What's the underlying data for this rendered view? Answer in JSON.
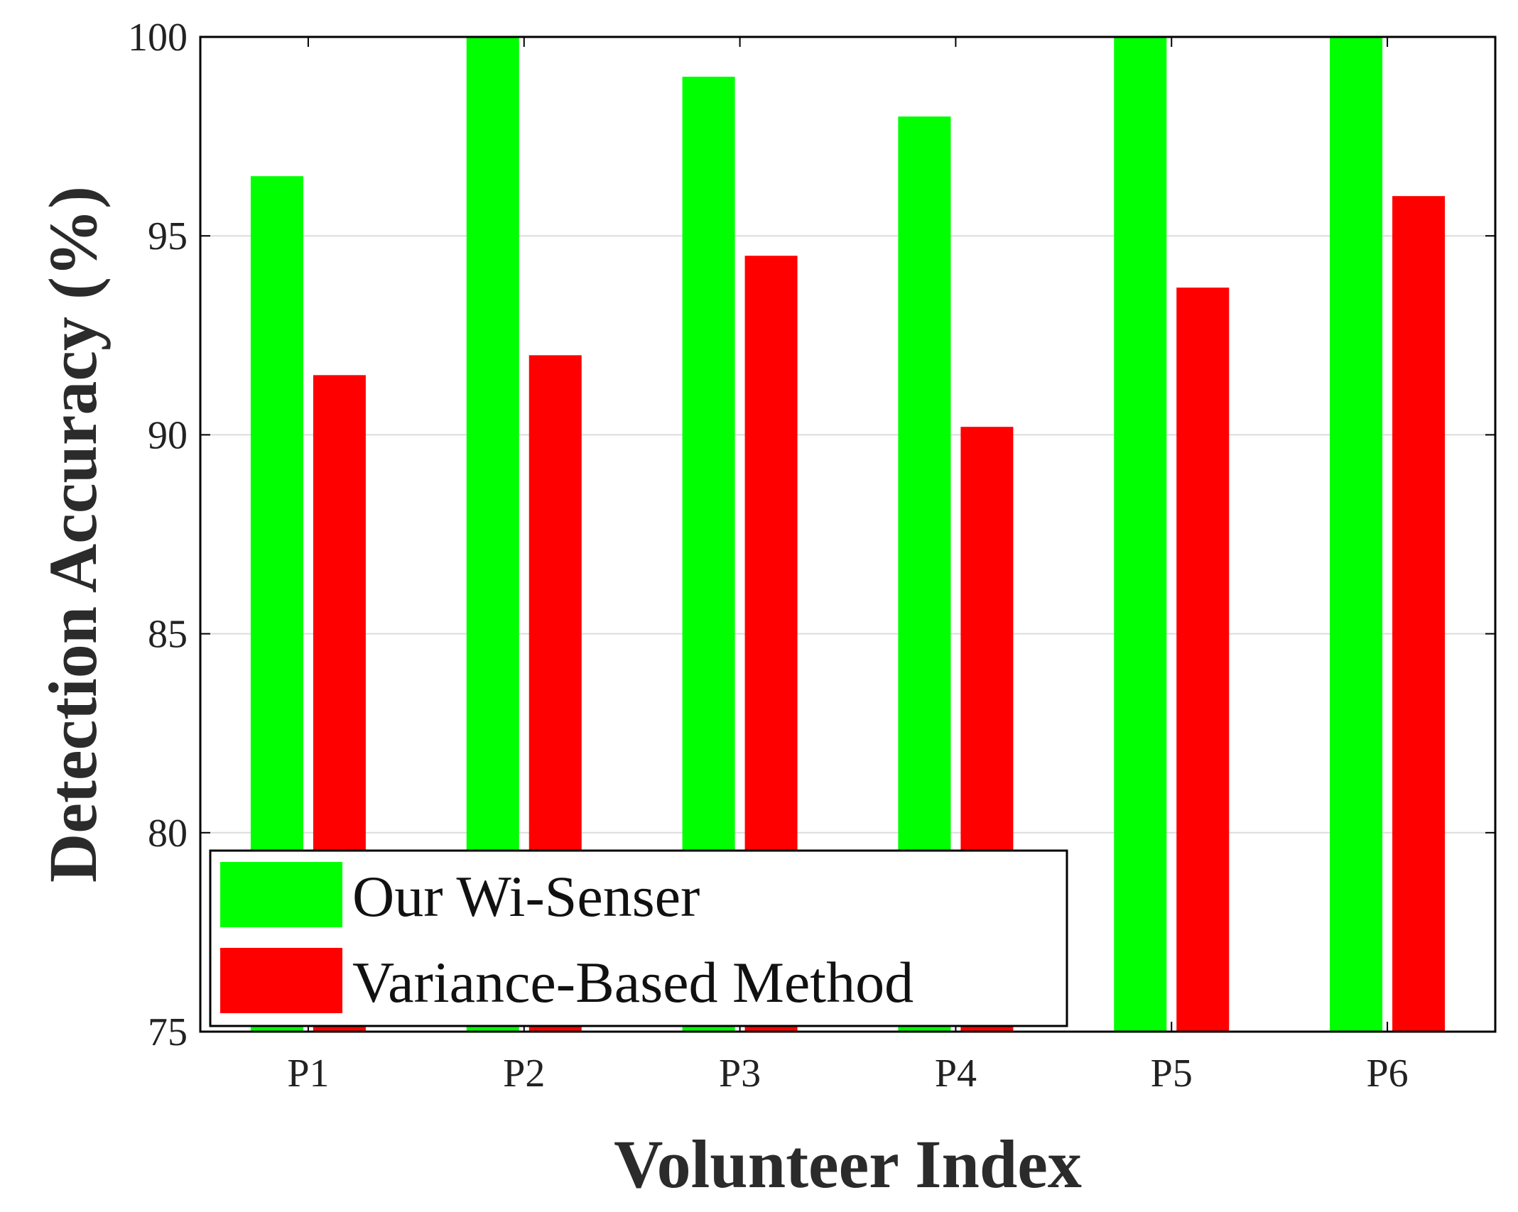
{
  "chart_data": {
    "type": "bar",
    "title": "",
    "xlabel": "Volunteer Index",
    "ylabel": "Detection Accuracy (%)",
    "categories": [
      "P1",
      "P2",
      "P3",
      "P4",
      "P5",
      "P6"
    ],
    "ylim": [
      75,
      100
    ],
    "yticks": [
      75,
      80,
      85,
      90,
      95,
      100
    ],
    "grid": true,
    "legend_position": "bottom-left",
    "series": [
      {
        "name": "Our Wi-Senser",
        "color": "#00ff00",
        "values": [
          96.5,
          100,
          99,
          98,
          100,
          100
        ]
      },
      {
        "name": "Variance-Based Method",
        "color": "#ff0000",
        "values": [
          91.5,
          92,
          94.5,
          90.2,
          93.7,
          96
        ]
      }
    ]
  }
}
